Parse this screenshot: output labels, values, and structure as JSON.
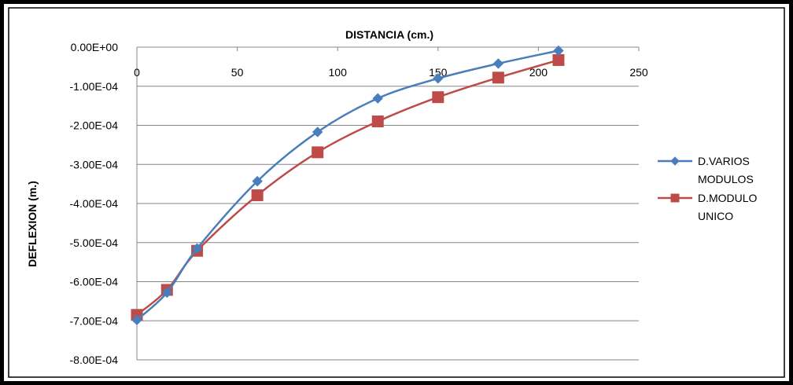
{
  "chart_data": {
    "type": "line",
    "title": "",
    "xlabel": "DISTANCIA (cm.)",
    "ylabel": "DEFLEXION (m.)",
    "xlim": [
      0,
      250
    ],
    "ylim": [
      -0.0008,
      0
    ],
    "x_ticks": [
      "0",
      "50",
      "100",
      "150",
      "200",
      "250"
    ],
    "y_ticks": [
      "0.00E+00",
      "-1.00E-04",
      "-2.00E-04",
      "-3.00E-04",
      "-4.00E-04",
      "-5.00E-04",
      "-6.00E-04",
      "-7.00E-04",
      "-8.00E-04"
    ],
    "grid": true,
    "legend_position": "right",
    "series": [
      {
        "name": "D.VARIOS MODULOS",
        "legend_lines": [
          "D.VARIOS",
          "MODULOS"
        ],
        "color": "#4A7EBB",
        "marker": "diamond",
        "x": [
          0,
          15,
          30,
          60,
          90,
          120,
          150,
          180,
          210
        ],
        "y": [
          -0.000698,
          -0.000628,
          -0.000515,
          -0.000343,
          -0.000217,
          -0.000131,
          -8e-05,
          -4.2e-05,
          -9e-06
        ]
      },
      {
        "name": "D.MODULO UNICO",
        "legend_lines": [
          "D.MODULO",
          "UNICO"
        ],
        "color": "#BE4B48",
        "marker": "square",
        "x": [
          0,
          15,
          30,
          60,
          90,
          120,
          150,
          180,
          210
        ],
        "y": [
          -0.000685,
          -0.000621,
          -0.000521,
          -0.000379,
          -0.000269,
          -0.00019,
          -0.000128,
          -7.8e-05,
          -3.3e-05
        ]
      }
    ]
  }
}
